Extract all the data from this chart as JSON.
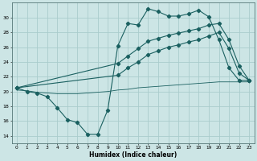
{
  "xlabel": "Humidex (Indice chaleur)",
  "ylabel": "",
  "background_color": "#cce5e5",
  "grid_color": "#aacccc",
  "line_color": "#1a6060",
  "xlim": [
    -0.5,
    23.5
  ],
  "ylim": [
    13,
    32
  ],
  "yticks": [
    14,
    16,
    18,
    20,
    22,
    24,
    26,
    28,
    30
  ],
  "xticks": [
    0,
    1,
    2,
    3,
    4,
    5,
    6,
    7,
    8,
    9,
    10,
    11,
    12,
    13,
    14,
    15,
    16,
    17,
    18,
    19,
    20,
    21,
    22,
    23
  ],
  "line1_x": [
    0,
    1,
    2,
    3,
    4,
    5,
    6,
    7,
    8,
    9,
    10,
    11,
    12,
    13,
    14,
    15,
    16,
    17,
    18,
    19,
    20,
    21,
    22,
    23
  ],
  "line1_y": [
    20.5,
    20.0,
    19.8,
    19.3,
    17.8,
    16.2,
    15.8,
    14.2,
    14.2,
    17.5,
    26.2,
    29.2,
    29.0,
    31.2,
    30.8,
    30.2,
    30.2,
    30.5,
    31.0,
    30.1,
    27.0,
    23.2,
    21.5,
    21.5
  ],
  "line2_x": [
    0,
    10,
    11,
    12,
    13,
    14,
    15,
    16,
    17,
    18,
    19,
    20,
    21,
    22,
    23
  ],
  "line2_y": [
    20.5,
    23.8,
    24.8,
    25.8,
    26.8,
    27.2,
    27.6,
    27.9,
    28.2,
    28.5,
    29.0,
    29.2,
    27.0,
    23.5,
    21.5
  ],
  "line3_x": [
    0,
    10,
    11,
    12,
    13,
    14,
    15,
    16,
    17,
    18,
    19,
    20,
    21,
    22,
    23
  ],
  "line3_y": [
    20.5,
    22.2,
    23.2,
    24.0,
    25.0,
    25.5,
    26.0,
    26.3,
    26.7,
    27.0,
    27.5,
    28.0,
    25.8,
    22.5,
    21.5
  ],
  "line4_x": [
    0,
    1,
    2,
    3,
    4,
    5,
    6,
    7,
    8,
    9,
    10,
    11,
    12,
    13,
    14,
    15,
    16,
    17,
    18,
    19,
    20,
    21,
    22,
    23
  ],
  "line4_y": [
    20.2,
    20.1,
    19.9,
    19.8,
    19.7,
    19.7,
    19.7,
    19.8,
    19.9,
    20.0,
    20.2,
    20.3,
    20.5,
    20.6,
    20.7,
    20.8,
    20.9,
    21.0,
    21.1,
    21.2,
    21.3,
    21.3,
    21.3,
    21.3
  ]
}
